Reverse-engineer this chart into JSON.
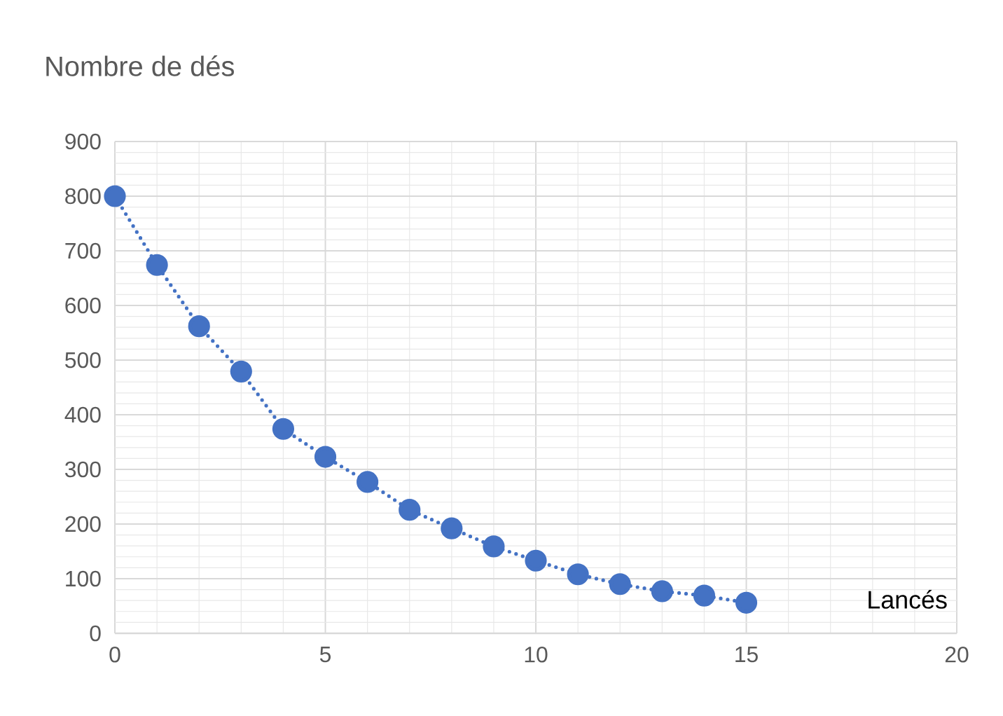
{
  "chart_data": {
    "type": "line",
    "title": "Nombre de dés",
    "xlabel": "Lancés",
    "x": [
      0,
      1,
      2,
      3,
      4,
      5,
      6,
      7,
      8,
      9,
      10,
      11,
      12,
      13,
      14,
      15
    ],
    "series": [
      {
        "color": "#4472c4",
        "values": [
          800,
          674,
          562,
          479,
          374,
          323,
          277,
          226,
          192,
          159,
          133,
          108,
          90,
          77,
          69,
          56
        ]
      }
    ],
    "xlim": [
      0,
      20
    ],
    "xticks": [
      0,
      5,
      10,
      15,
      20
    ],
    "ylim": [
      0,
      900
    ],
    "yticks": [
      0,
      100,
      200,
      300,
      400,
      500,
      600,
      700,
      800,
      900
    ],
    "grid": true,
    "marker": "circle",
    "line_style": "dotted"
  }
}
